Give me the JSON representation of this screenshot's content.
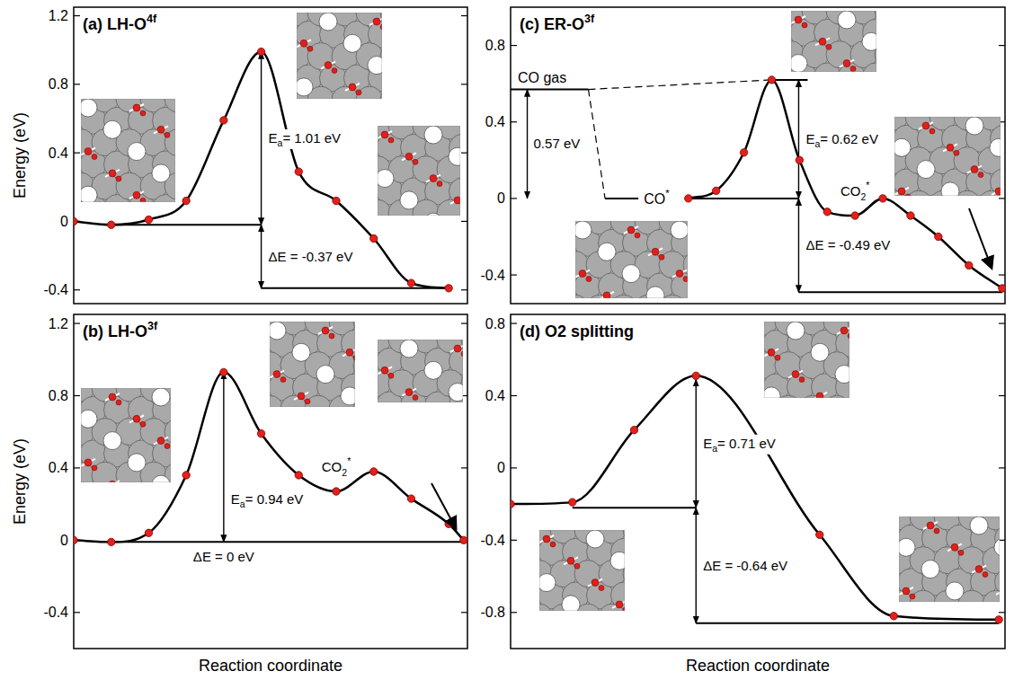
{
  "chart_data": [
    {
      "type": "line",
      "title": {
        "text": "(a) LH-O",
        "sup": "4f"
      },
      "y_label": "Energy (eV)",
      "x": [
        0,
        1,
        2,
        3,
        4,
        5,
        6,
        7,
        8,
        9,
        10
      ],
      "values": [
        0,
        -0.02,
        0.01,
        0.12,
        0.59,
        0.99,
        0.29,
        0.12,
        -0.1,
        -0.36,
        -0.39
      ],
      "color": "#000000",
      "marker": "circle",
      "tick_labels": "y",
      "xlim": [
        0,
        10.5
      ],
      "ylim": [
        -0.48,
        1.25
      ],
      "yticks": [
        -0.4,
        0,
        0.4,
        0.8,
        1.2
      ],
      "baseline": -0.02,
      "barrier": {
        "symbol": "E",
        "subscript": "a",
        "text": "= 1.01 eV",
        "value": 1.01
      },
      "reaction_energy": {
        "text": "ΔE = -0.37 eV",
        "value": -0.37
      }
    },
    {
      "type": "line",
      "title": {
        "text": "(b) LH-O",
        "sup": "3f"
      },
      "y_label": "Energy (eV)",
      "x_label": "Reaction coordinate",
      "x": [
        0,
        1,
        2,
        3,
        4,
        5,
        6,
        7,
        8,
        9,
        10,
        10.4
      ],
      "values": [
        0,
        -0.01,
        0.04,
        0.36,
        0.93,
        0.59,
        0.36,
        0.27,
        0.38,
        0.23,
        0.09,
        0
      ],
      "color": "#000000",
      "marker": "circle",
      "tick_labels": "y",
      "xlim": [
        0,
        10.5
      ],
      "ylim": [
        -0.6,
        1.25
      ],
      "yticks": [
        -0.4,
        0,
        0.4,
        0.8,
        1.2
      ],
      "baseline": -0.01,
      "barrier": {
        "symbol": "E",
        "subscript": "a",
        "text": "= 0.94 eV",
        "value": 0.94
      },
      "reaction_energy": {
        "text": "ΔE = 0 eV",
        "value": 0
      },
      "intermediate_label": {
        "text": "CO",
        "sub": "2",
        "sup": "*"
      }
    },
    {
      "type": "line",
      "title": {
        "text": "(c) ER-O",
        "sup": "3f"
      },
      "x": [
        6.4,
        7.4,
        8.4,
        9.4,
        10.4,
        11.4,
        12.4,
        13.4,
        14.4,
        15.4,
        16.5,
        17.7
      ],
      "values": [
        0,
        0.04,
        0.24,
        0.62,
        0.2,
        -0.07,
        -0.09,
        0,
        -0.09,
        -0.2,
        -0.35,
        -0.47
      ],
      "color": "#000000",
      "marker": "circle",
      "tick_labels": "y",
      "xlim": [
        0,
        17.8
      ],
      "ylim": [
        -0.55,
        1.0
      ],
      "yticks": [
        -0.4,
        0,
        0.4,
        0.8
      ],
      "baseline": 0,
      "barrier": {
        "symbol": "E",
        "subscript": "a",
        "text": "= 0.62 eV",
        "value": 0.62
      },
      "reaction_energy": {
        "text": "ΔE = -0.49 eV",
        "value": -0.49
      },
      "gas_level": {
        "label": "CO gas",
        "value": 0.57,
        "x": [
          0,
          2.8
        ]
      },
      "adsorbed_level": {
        "label": {
          "text": "CO",
          "sup": "*"
        },
        "value": 0,
        "x": [
          3.4,
          4.6
        ]
      },
      "adsorption": {
        "text": "0.57 eV",
        "value": 0.57
      },
      "intermediate_label": {
        "text": "CO",
        "sub": "2",
        "sup": "*"
      }
    },
    {
      "type": "line",
      "title": "(d) O2 splitting",
      "x_label": "Reaction coordinate",
      "x": [
        0,
        1,
        2,
        3,
        5,
        6.2,
        7.9
      ],
      "values": [
        -0.2,
        -0.19,
        0.21,
        0.51,
        -0.37,
        -0.82,
        -0.84
      ],
      "color": "#000000",
      "marker": "circle",
      "tick_labels": "y",
      "xlim": [
        0,
        8
      ],
      "ylim": [
        -1,
        0.85
      ],
      "yticks": [
        -0.8,
        -0.4,
        0,
        0.4,
        0.8
      ],
      "baseline": -0.22,
      "barrier": {
        "symbol": "E",
        "subscript": "a",
        "text": "= 0.71 eV",
        "value": 0.71
      },
      "reaction_energy": {
        "text": "ΔE = -0.64 eV",
        "value": -0.64
      }
    }
  ]
}
